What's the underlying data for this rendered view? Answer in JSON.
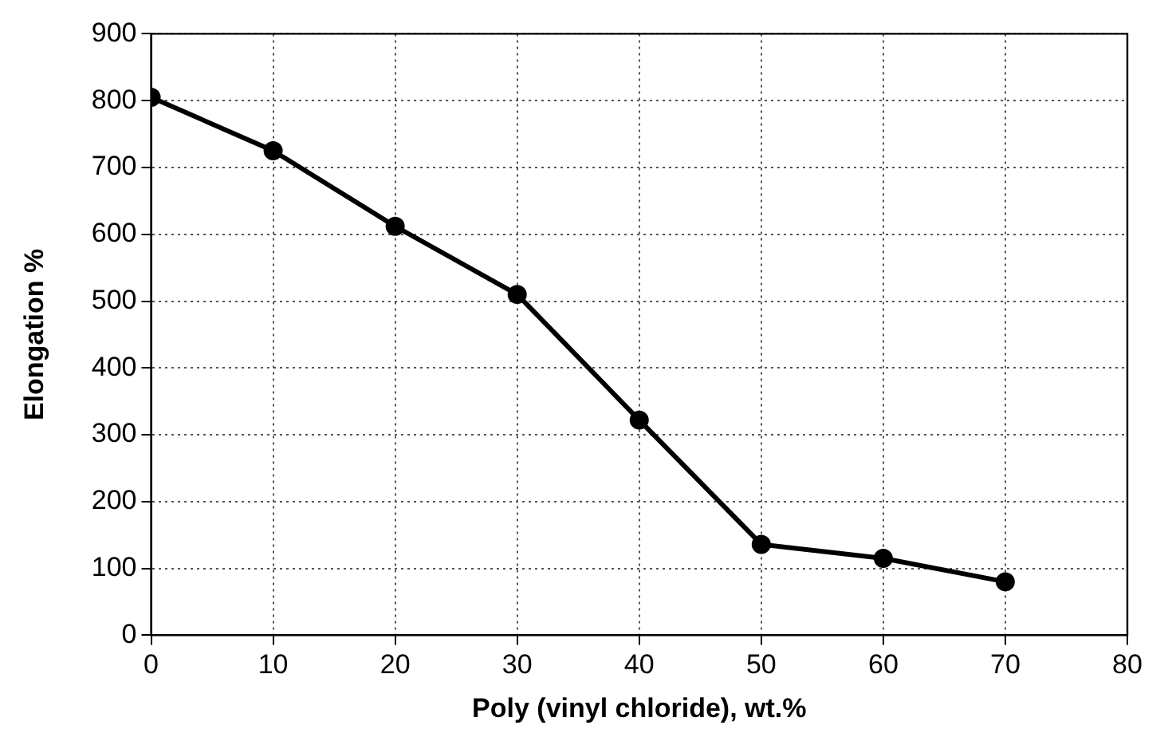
{
  "chart_data": {
    "type": "line",
    "xlabel": "Poly (vinyl chloride), wt.%",
    "ylabel": "Elongation %",
    "x": [
      0,
      10,
      20,
      30,
      40,
      50,
      60,
      70
    ],
    "series": [
      {
        "color": "#000000",
        "values": [
          805,
          725,
          612,
          510,
          322,
          136,
          115,
          80
        ]
      }
    ],
    "xlim": [
      0,
      80
    ],
    "xticks": [
      0,
      10,
      20,
      30,
      40,
      50,
      60,
      70,
      80
    ],
    "ylim": [
      0,
      900
    ],
    "yticks": [
      0,
      100,
      200,
      300,
      400,
      500,
      600,
      700,
      800,
      900
    ],
    "grid": true,
    "marker": "circle",
    "line_style": "solid",
    "legend": false
  }
}
